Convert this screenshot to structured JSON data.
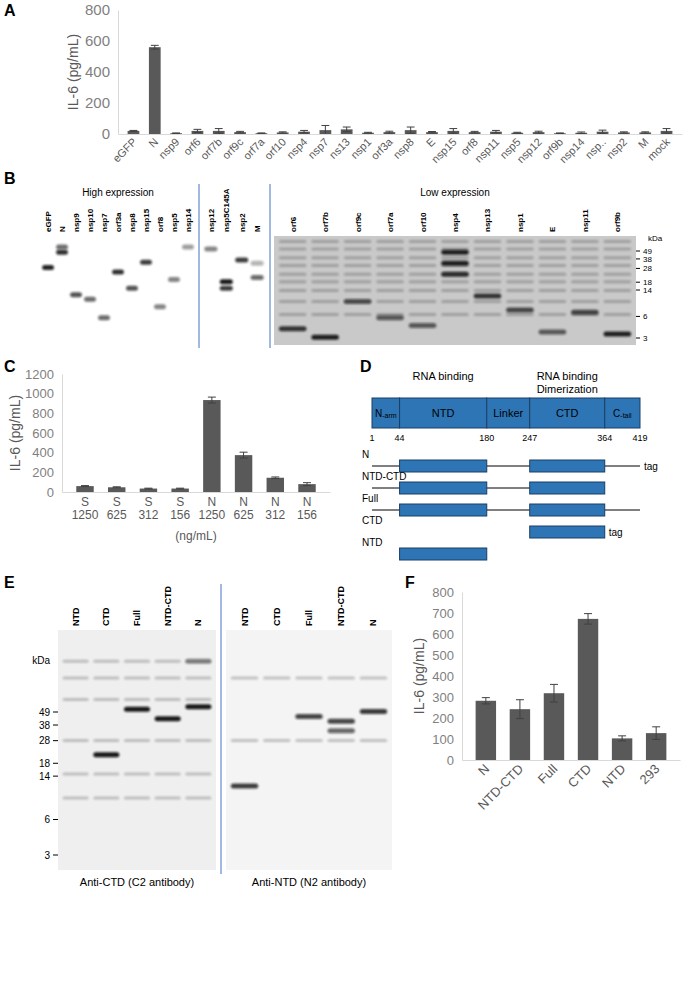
{
  "chart_data": [
    {
      "panel": "A",
      "type": "bar",
      "y_label": "IL-6 (pg/mL)",
      "color": "#595959",
      "categories": [
        "eGFP",
        "N",
        "nsp9",
        "orf6",
        "orf7b",
        "orf9c",
        "orf7a",
        "orf10",
        "nsp4",
        "nsp7",
        "ns13",
        "nsp1",
        "orf3a",
        "nsp8",
        "E",
        "nsp15",
        "orf8",
        "nsp11",
        "nsp5",
        "nsp12",
        "orf9b",
        "nsp14",
        "nsp..",
        "nsp2",
        "M",
        "mock"
      ],
      "values": [
        20,
        560,
        5,
        20,
        20,
        12,
        5,
        10,
        15,
        25,
        30,
        8,
        12,
        25,
        12,
        20,
        12,
        15,
        8,
        12,
        5,
        8,
        15,
        10,
        10,
        20
      ],
      "errors": [
        3,
        12,
        2,
        10,
        15,
        5,
        2,
        4,
        8,
        30,
        15,
        3,
        6,
        20,
        4,
        15,
        5,
        8,
        3,
        6,
        2,
        5,
        10,
        4,
        4,
        15
      ],
      "ylim": [
        0,
        800
      ],
      "yticks": [
        0,
        200,
        400,
        600,
        800
      ]
    },
    {
      "panel": "C",
      "type": "bar",
      "y_label": "IL-6 (pg/mL)",
      "x_label": "(ng/mL)",
      "color": "#595959",
      "categories": [
        "S 1250",
        "S 625",
        "S 312",
        "S 156",
        "N 1250",
        "N 625",
        "N 312",
        "N 156"
      ],
      "values": [
        60,
        48,
        35,
        35,
        935,
        375,
        145,
        80
      ],
      "errors": [
        5,
        5,
        4,
        4,
        30,
        30,
        8,
        15
      ],
      "ylim": [
        0,
        1200
      ],
      "yticks": [
        0,
        200,
        400,
        600,
        800,
        1000,
        1200
      ]
    },
    {
      "panel": "F",
      "type": "bar",
      "y_label": "IL-6 (pg/mL)",
      "color": "#595959",
      "categories": [
        "N",
        "NTD-CTD",
        "Full",
        "CTD",
        "NTD",
        "293"
      ],
      "values": [
        282,
        242,
        318,
        672,
        103,
        128
      ],
      "errors": [
        15,
        45,
        42,
        25,
        12,
        30
      ],
      "ylim": [
        0,
        800
      ],
      "yticks": [
        0,
        100,
        200,
        300,
        400,
        500,
        600,
        700,
        800
      ]
    }
  ],
  "blots": [
    {
      "panel": "B",
      "marker_unit": "kDa",
      "markers": [
        49,
        38,
        28,
        18,
        14,
        6,
        3
      ],
      "groups": [
        {
          "title": "High expression",
          "lanes": [
            "eGFP",
            "N",
            "nsp9",
            "nsp10",
            "nsp7",
            "orf3a",
            "nsp8",
            "nsp15",
            "orf8",
            "nsp5",
            "nsp14"
          ]
        },
        {
          "lanes": [
            "nsp12",
            "nsp5C145A",
            "nsp2",
            "M"
          ]
        },
        {
          "title": "Low expression",
          "lanes": [
            "orf6",
            "orf7b",
            "orf9c",
            "orf7a",
            "orf10",
            "nsp4",
            "nsp13",
            "nsp1",
            "E",
            "nsp11",
            "orf9b"
          ]
        }
      ]
    },
    {
      "panel": "E",
      "marker_unit": "kDa",
      "markers": [
        49,
        38,
        28,
        18,
        14,
        6,
        3
      ],
      "groups": [
        {
          "caption": "Anti-CTD (C2 antibody)",
          "lanes": [
            "NTD",
            "CTD",
            "Full",
            "NTD-CTD",
            "N"
          ]
        },
        {
          "caption": "Anti-NTD (N2 antibody)",
          "lanes": [
            "NTD",
            "CTD",
            "Full",
            "NTD-CTD",
            "N"
          ]
        }
      ]
    }
  ],
  "diagram": {
    "panel": "D",
    "color": "#2e75b6",
    "positions": [
      1,
      44,
      180,
      247,
      364,
      419
    ],
    "domains": [
      {
        "label": {
          "main": "N",
          "sub": "-arm"
        }
      },
      {
        "label": {
          "main": "NTD"
        }
      },
      {
        "label": {
          "main": "Linker"
        }
      },
      {
        "label": {
          "main": "CTD"
        }
      },
      {
        "label": {
          "main": "C",
          "sub": "-tail"
        }
      }
    ],
    "headers": [
      {
        "over": "NTD",
        "lines": [
          "RNA binding"
        ]
      },
      {
        "over": "CTD",
        "lines": [
          "RNA binding",
          "Dimerization"
        ]
      }
    ],
    "constructs": [
      {
        "label": "N",
        "from": 1,
        "to": 419,
        "boxes": [
          "NTD",
          "CTD"
        ],
        "tag": "tag"
      },
      {
        "label": "NTD-CTD",
        "from": 1,
        "to": 364,
        "boxes": [
          "NTD",
          "CTD"
        ]
      },
      {
        "label": "Full",
        "from": 1,
        "to": 419,
        "boxes": [
          "NTD",
          "CTD"
        ]
      },
      {
        "label": "CTD",
        "from": 247,
        "to": 364,
        "boxes": [
          "CTD"
        ],
        "tag": "tag"
      },
      {
        "label": "NTD",
        "from": 44,
        "to": 180,
        "boxes": [
          "NTD"
        ]
      }
    ]
  }
}
